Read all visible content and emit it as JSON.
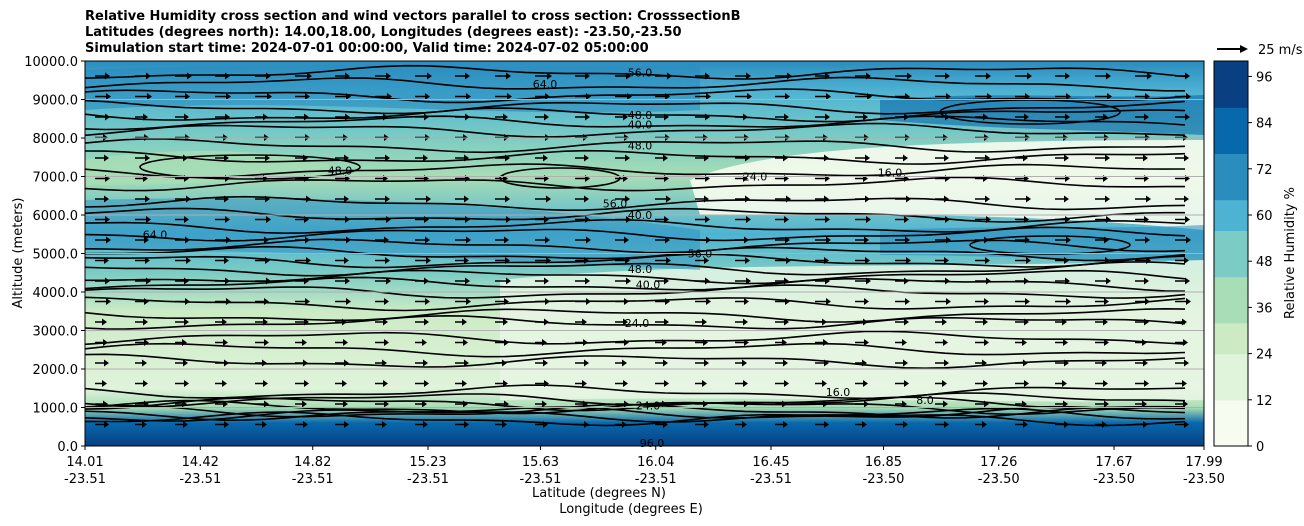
{
  "chart_data": {
    "type": "contour",
    "title_lines": [
      "Relative Humidity cross section and wind vectors parallel to cross section: CrosssectionB",
      "Latitudes (degrees north): 14.00,18.00, Longitudes (degrees east): -23.50,-23.50",
      "Simulation start time: 2024-07-01 00:00:00, Valid time: 2024-07-02 05:00:00"
    ],
    "ylabel": "Altitude (meters)",
    "xlabel_lines": [
      "Latitude (degrees N)",
      "Longitude (degrees E)"
    ],
    "ylim": [
      0,
      10000
    ],
    "y_ticks": [
      "0.0",
      "1000.0",
      "2000.0",
      "3000.0",
      "4000.0",
      "5000.0",
      "6000.0",
      "7000.0",
      "8000.0",
      "9000.0",
      "10000.0"
    ],
    "x_ticks": [
      {
        "lat": "14.01",
        "lon": "-23.51"
      },
      {
        "lat": "14.42",
        "lon": "-23.51"
      },
      {
        "lat": "14.82",
        "lon": "-23.51"
      },
      {
        "lat": "15.23",
        "lon": "-23.51"
      },
      {
        "lat": "15.63",
        "lon": "-23.51"
      },
      {
        "lat": "16.04",
        "lon": "-23.51"
      },
      {
        "lat": "16.45",
        "lon": "-23.51"
      },
      {
        "lat": "16.85",
        "lon": "-23.50"
      },
      {
        "lat": "17.26",
        "lon": "-23.50"
      },
      {
        "lat": "17.67",
        "lon": "-23.50"
      },
      {
        "lat": "17.99",
        "lon": "-23.50"
      }
    ],
    "colorbar": {
      "label": "Relative Humidity %",
      "ticks": [
        "0",
        "12",
        "24",
        "36",
        "48",
        "60",
        "72",
        "84",
        "96"
      ],
      "range": [
        0,
        100
      ],
      "colors": [
        "#f7fcf0",
        "#e0f3db",
        "#ccebc5",
        "#a8ddb5",
        "#7bccc4",
        "#4eb3d3",
        "#2b8cbe",
        "#0868ac",
        "#084081"
      ]
    },
    "wind_key": "25 m/s",
    "grid": "horizontal",
    "contour_levels": [
      {
        "label": "64.0",
        "alt": 9400
      },
      {
        "label": "56.0",
        "alt": 9700
      },
      {
        "label": "48.0",
        "alt": 8600
      },
      {
        "label": "40.0",
        "alt": 8350
      },
      {
        "label": "48.0",
        "alt": 7800
      },
      {
        "label": "48.0",
        "alt": 7150
      },
      {
        "label": "16.0",
        "alt": 7100
      },
      {
        "label": "24.0",
        "alt": 7000
      },
      {
        "label": "56.0",
        "alt": 6300
      },
      {
        "label": "40.0",
        "alt": 6000
      },
      {
        "label": "64.0",
        "alt": 5500
      },
      {
        "label": "56.0",
        "alt": 5000
      },
      {
        "label": "48.0",
        "alt": 4600
      },
      {
        "label": "40.0",
        "alt": 4200
      },
      {
        "label": "24.0",
        "alt": 3200
      },
      {
        "label": "24.0",
        "alt": 1050
      },
      {
        "label": "16.0",
        "alt": 1400
      },
      {
        "label": "8.0",
        "alt": 1200
      },
      {
        "label": "96.0",
        "alt": 80
      }
    ]
  }
}
